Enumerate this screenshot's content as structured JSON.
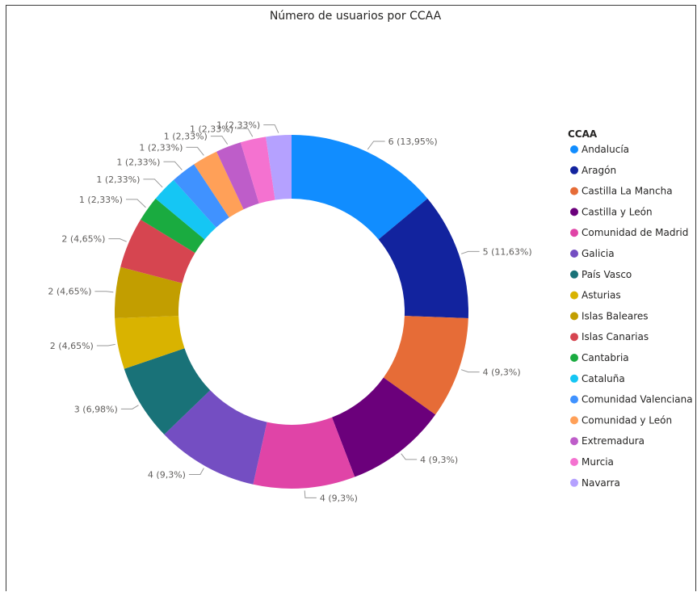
{
  "chart_data": {
    "type": "pie",
    "donut": true,
    "title": "Número de usuarios por CCAA",
    "legend_title": "CCAA",
    "legend_position": "right",
    "categories": [
      "Andalucía",
      "Aragón",
      "Castilla La Mancha",
      "Castilla y León",
      "Comunidad de Madrid",
      "Galicia",
      "País Vasco",
      "Asturias",
      "Islas Baleares",
      "Islas Canarias",
      "Cantabria",
      "Cataluña",
      "Comunidad Valenciana",
      "Comunidad y León",
      "Extremadura",
      "Murcia",
      "Navarra"
    ],
    "values": [
      6,
      5,
      4,
      4,
      4,
      4,
      3,
      2,
      2,
      2,
      1,
      1,
      1,
      1,
      1,
      1,
      1
    ],
    "data_labels": [
      "6 (13,95%)",
      "5 (11,63%)",
      "4 (9,3%)",
      "4 (9,3%)",
      "4 (9,3%)",
      "4 (9,3%)",
      "3 (6,98%)",
      "2 (4,65%)",
      "2 (4,65%)",
      "2 (4,65%)",
      "1 (2,33%)",
      "1 (2,33%)",
      "1 (2,33%)",
      "1 (2,33%)",
      "1 (2,33%)",
      "1 (2,33%)",
      "1 (2,33%)"
    ],
    "colors": [
      "#118DFF",
      "#12239E",
      "#E66C37",
      "#6B007B",
      "#E044A7",
      "#744EC2",
      "#197278",
      "#D9B300",
      "#C29E00",
      "#D64550",
      "#1AAB40",
      "#15C6F4",
      "#4092FF",
      "#FFA058",
      "#BE5DC9",
      "#F472D0",
      "#B5A1FF"
    ]
  }
}
